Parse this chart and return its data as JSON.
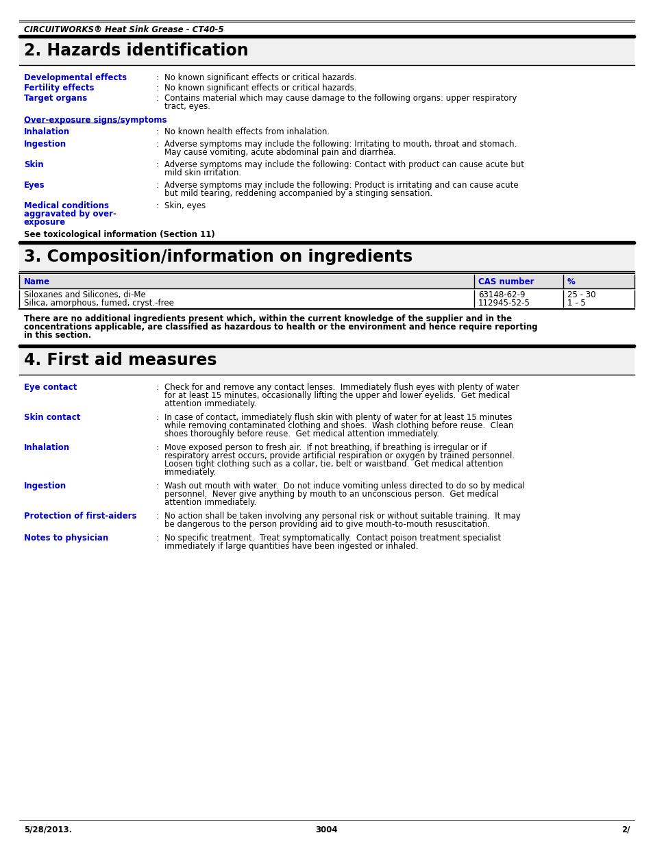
{
  "header_text": "CIRCUITWORKS® Heat Sink Grease - CT40-5",
  "bg_color": "#ffffff",
  "text_color": "#000000",
  "blue_color": "#0000cc",
  "section2_title": "2. Hazards identification",
  "section3_title": "3. Composition/information on ingredients",
  "section4_title": "4. First aid measures",
  "footer_left": "5/28/2013.",
  "footer_center": "3004",
  "footer_right": "2/",
  "s2_items": [
    {
      "label": "Developmental effects",
      "text": "No known significant effects or critical hazards."
    },
    {
      "label": "Fertility effects",
      "text": "No known significant effects or critical hazards."
    },
    {
      "label": "Target organs",
      "text": "Contains material which may cause damage to the following organs: upper respiratory\ntract, eyes."
    }
  ],
  "overexposure_header": "Over-exposure signs/symptoms",
  "s2_overexposure": [
    {
      "label": "Inhalation",
      "text": "No known health effects from inhalation."
    },
    {
      "label": "Ingestion",
      "text": "Adverse symptoms may include the following: Irritating to mouth, throat and stomach.\nMay cause vomiting, acute abdominal pain and diarrhea."
    },
    {
      "label": "Skin",
      "text": "Adverse symptoms may include the following: Contact with product can cause acute but\nmild skin irritation."
    },
    {
      "label": "Eyes",
      "text": "Adverse symptoms may include the following: Product is irritating and can cause acute\nbut mild tearing, reddening accompanied by a stinging sensation."
    },
    {
      "label": "Medical conditions\naggravated by over-\nexposure",
      "text": "Skin, eyes"
    }
  ],
  "see_toxicological": "See toxicological information (Section 11)",
  "table_headers": [
    "Name",
    "CAS number",
    "%"
  ],
  "table_rows": [
    [
      "Siloxanes and Silicones, di-Me",
      "63148-62-9",
      "25 - 30"
    ],
    [
      "Silica, amorphous, fumed, cryst.-free",
      "112945-52-5",
      "1 - 5"
    ]
  ],
  "no_additional": "There are no additional ingredients present which, within the current knowledge of the supplier and in the\nconcentrations applicable, are classified as hazardous to health or the environment and hence require reporting\nin this section.",
  "s4_items": [
    {
      "label": "Eye contact",
      "text": "Check for and remove any contact lenses.  Immediately flush eyes with plenty of water\nfor at least 15 minutes, occasionally lifting the upper and lower eyelids.  Get medical\nattention immediately."
    },
    {
      "label": "Skin contact",
      "text": "In case of contact, immediately flush skin with plenty of water for at least 15 minutes\nwhile removing contaminated clothing and shoes.  Wash clothing before reuse.  Clean\nshoes thoroughly before reuse.  Get medical attention immediately."
    },
    {
      "label": "Inhalation",
      "text": "Move exposed person to fresh air.  If not breathing, if breathing is irregular or if\nrespiratory arrest occurs, provide artificial respiration or oxygen by trained personnel.\nLoosen tight clothing such as a collar, tie, belt or waistband.  Get medical attention\nimmediately."
    },
    {
      "label": "Ingestion",
      "text": "Wash out mouth with water.  Do not induce vomiting unless directed to do so by medical\npersonnel.  Never give anything by mouth to an unconscious person.  Get medical\nattention immediately."
    },
    {
      "label": "Protection of first-aiders",
      "text": "No action shall be taken involving any personal risk or without suitable training.  It may\nbe dangerous to the person providing aid to give mouth-to-mouth resuscitation."
    },
    {
      "label": "Notes to physician",
      "text": "No specific treatment.  Treat symptomatically.  Contact poison treatment specialist\nimmediately if large quantities have been ingested or inhaled."
    }
  ]
}
